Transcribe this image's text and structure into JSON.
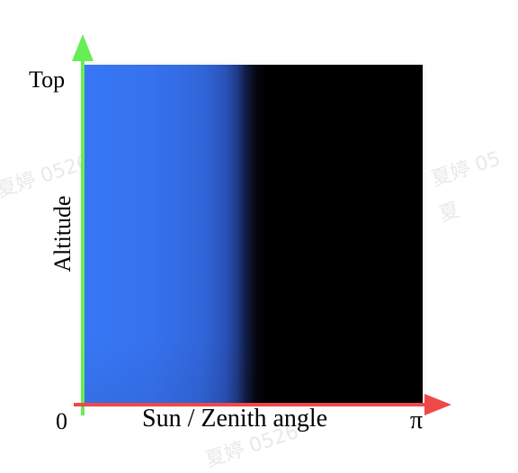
{
  "diagram": {
    "y_axis": {
      "title": "Altitude",
      "top_label": "Top",
      "color": "#66ee55"
    },
    "x_axis": {
      "title": "Sun / Zenith angle",
      "start_label": "0",
      "end_label": "π",
      "color": "#f04848"
    },
    "panel": {
      "lit_color": "#3777f5",
      "dark_color": "#000000"
    }
  },
  "watermark": {
    "text_1": "夏婷 0526",
    "text_2": "夏婷 05",
    "text_3": "夏",
    "text_4": "夏婷 0526"
  }
}
